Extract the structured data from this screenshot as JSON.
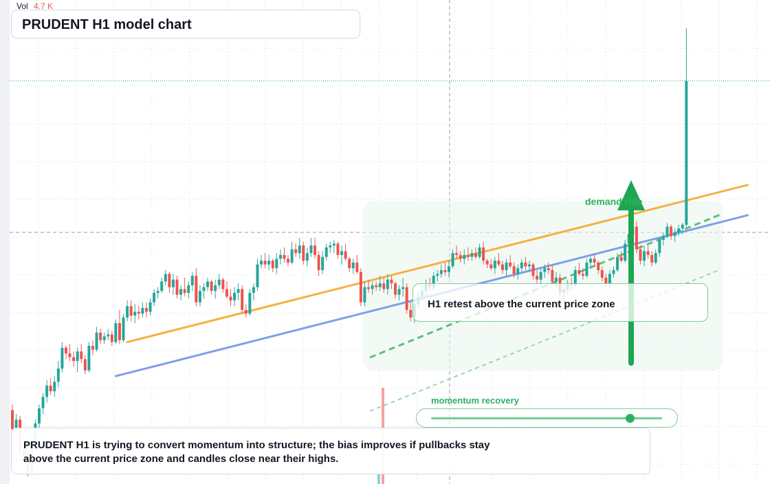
{
  "header": {
    "vol_label": "Vol",
    "vol_value": "4.7 K",
    "title": "PRUDENT H1 model chart"
  },
  "annotations": {
    "retest": "H1 retest above the current price zone",
    "demand": "demand ride",
    "momentum_label": "momentum recovery",
    "momentum_level": 0.86
  },
  "note": {
    "line1": "PRUDENT H1 is trying to convert momentum into structure; the bias improves if pullbacks stay",
    "line2": "above the current price zone and candles close near their highs."
  },
  "colors": {
    "up": "#26a69a",
    "down": "#ef5350",
    "orange_line": "#f5b041",
    "blue_line": "#7f9fe8",
    "green": "#2eb062"
  },
  "chart_data": {
    "type": "candlestick",
    "title": "PRUDENT H1 model chart",
    "timeframe": "H1",
    "axis_labels": "not shown",
    "candles": [
      [
        54.6,
        54.9,
        53.4,
        53.6
      ],
      [
        53.6,
        54.4,
        53.2,
        54.1
      ],
      [
        54.1,
        54.3,
        52.2,
        52.5
      ],
      [
        52.5,
        52.8,
        51.9,
        52.2
      ],
      [
        52.2,
        52.7,
        51.1,
        51.3
      ],
      [
        51.3,
        53.2,
        51.2,
        53.0
      ],
      [
        53.0,
        54.1,
        52.7,
        53.9
      ],
      [
        53.9,
        54.9,
        53.5,
        54.7
      ],
      [
        54.7,
        55.5,
        54.4,
        55.3
      ],
      [
        55.3,
        56.2,
        55.0,
        55.9
      ],
      [
        55.9,
        56.3,
        55.4,
        55.6
      ],
      [
        55.6,
        56.4,
        55.3,
        56.1
      ],
      [
        56.1,
        57.2,
        55.8,
        56.8
      ],
      [
        56.8,
        58.2,
        56.6,
        57.9
      ],
      [
        57.9,
        58.0,
        57.3,
        57.6
      ],
      [
        57.6,
        58.1,
        57.2,
        57.4
      ],
      [
        57.4,
        57.7,
        56.9,
        57.2
      ],
      [
        57.2,
        57.9,
        56.6,
        57.7
      ],
      [
        57.7,
        58.1,
        57.1,
        57.3
      ],
      [
        57.3,
        57.5,
        56.5,
        56.7
      ],
      [
        56.7,
        58.2,
        56.6,
        58.0
      ],
      [
        58.0,
        58.3,
        57.5,
        57.8
      ],
      [
        57.8,
        59.0,
        57.7,
        58.7
      ],
      [
        58.7,
        58.9,
        58.1,
        58.3
      ],
      [
        58.3,
        58.7,
        58.1,
        58.5
      ],
      [
        58.5,
        58.9,
        58.3,
        58.6
      ],
      [
        58.6,
        58.8,
        58.0,
        58.2
      ],
      [
        58.2,
        59.4,
        58.1,
        59.2
      ],
      [
        59.2,
        59.9,
        58.1,
        58.3
      ],
      [
        58.3,
        59.7,
        58.2,
        59.5
      ],
      [
        59.5,
        60.4,
        59.3,
        60.1
      ],
      [
        60.1,
        60.4,
        59.3,
        59.6
      ],
      [
        59.6,
        60.2,
        59.2,
        59.8
      ],
      [
        59.8,
        60.1,
        59.4,
        59.7
      ],
      [
        59.7,
        60.3,
        59.5,
        60.0
      ],
      [
        60.0,
        60.3,
        59.5,
        59.8
      ],
      [
        59.8,
        60.5,
        59.6,
        60.3
      ],
      [
        60.3,
        61.0,
        60.1,
        60.8
      ],
      [
        60.8,
        61.1,
        60.5,
        60.9
      ],
      [
        60.9,
        61.6,
        60.8,
        61.4
      ],
      [
        61.4,
        62.0,
        61.2,
        61.8
      ],
      [
        61.8,
        61.9,
        60.8,
        61.1
      ],
      [
        61.1,
        61.8,
        60.7,
        61.5
      ],
      [
        61.5,
        61.7,
        60.5,
        60.7
      ],
      [
        60.7,
        61.2,
        60.4,
        61.0
      ],
      [
        61.0,
        61.6,
        60.6,
        60.8
      ],
      [
        60.8,
        61.4,
        60.5,
        61.2
      ],
      [
        61.2,
        61.9,
        60.9,
        61.7
      ],
      [
        61.7,
        62.1,
        60.1,
        60.3
      ],
      [
        60.3,
        61.2,
        60.1,
        60.9
      ],
      [
        60.9,
        61.3,
        60.5,
        61.1
      ],
      [
        61.1,
        61.6,
        60.9,
        61.4
      ],
      [
        61.4,
        61.5,
        60.7,
        60.9
      ],
      [
        60.9,
        61.5,
        60.5,
        61.2
      ],
      [
        61.2,
        61.8,
        61.0,
        61.5
      ],
      [
        61.5,
        61.6,
        60.8,
        61.0
      ],
      [
        61.0,
        61.4,
        60.5,
        60.6
      ],
      [
        60.6,
        61.0,
        60.1,
        60.4
      ],
      [
        60.4,
        61.1,
        60.1,
        60.8
      ],
      [
        60.8,
        61.3,
        60.4,
        61.0
      ],
      [
        61.0,
        61.2,
        59.7,
        59.9
      ],
      [
        59.9,
        60.2,
        59.5,
        59.7
      ],
      [
        59.7,
        61.0,
        59.6,
        60.8
      ],
      [
        60.8,
        61.3,
        60.4,
        61.1
      ],
      [
        61.1,
        62.6,
        60.9,
        62.3
      ],
      [
        62.3,
        62.8,
        62.1,
        62.5
      ],
      [
        62.5,
        62.9,
        62.1,
        62.3
      ],
      [
        62.3,
        62.8,
        62.0,
        62.5
      ],
      [
        62.5,
        62.6,
        61.9,
        62.1
      ],
      [
        62.1,
        62.9,
        61.8,
        62.6
      ],
      [
        62.6,
        63.1,
        62.3,
        62.8
      ],
      [
        62.8,
        63.2,
        62.4,
        62.6
      ],
      [
        62.6,
        62.8,
        62.2,
        62.4
      ],
      [
        62.4,
        63.5,
        62.3,
        63.1
      ],
      [
        63.1,
        63.4,
        62.7,
        62.9
      ],
      [
        62.9,
        63.7,
        62.6,
        63.3
      ],
      [
        63.3,
        63.5,
        62.3,
        62.5
      ],
      [
        62.5,
        63.2,
        62.2,
        62.9
      ],
      [
        62.9,
        63.7,
        62.7,
        63.3
      ],
      [
        63.3,
        63.7,
        62.6,
        62.8
      ],
      [
        62.8,
        63.0,
        61.7,
        62.0
      ],
      [
        62.0,
        63.0,
        61.8,
        62.7
      ],
      [
        62.7,
        63.4,
        62.5,
        63.2
      ],
      [
        63.2,
        63.5,
        62.9,
        63.3
      ],
      [
        63.3,
        63.6,
        62.9,
        63.4
      ],
      [
        63.4,
        63.5,
        62.6,
        62.8
      ],
      [
        62.8,
        63.3,
        62.3,
        63.0
      ],
      [
        63.0,
        63.4,
        62.5,
        62.6
      ],
      [
        62.6,
        62.7,
        61.9,
        62.1
      ],
      [
        62.1,
        62.6,
        61.8,
        62.4
      ],
      [
        62.4,
        62.8,
        61.8,
        61.9
      ],
      [
        61.9,
        62.1,
        60.1,
        60.3
      ],
      [
        60.3,
        61.4,
        60.1,
        61.1
      ],
      [
        61.1,
        61.5,
        60.8,
        61.0
      ],
      [
        61.0,
        61.4,
        60.7,
        61.2
      ],
      [
        61.2,
        61.4,
        60.9,
        61.1
      ],
      [
        61.1,
        61.7,
        60.9,
        61.3
      ],
      [
        61.3,
        61.6,
        60.8,
        61.0
      ],
      [
        61.0,
        61.8,
        60.7,
        61.5
      ],
      [
        61.5,
        61.7,
        61.0,
        61.3
      ],
      [
        61.3,
        61.4,
        60.5,
        60.7
      ],
      [
        60.7,
        61.2,
        60.4,
        61.0
      ],
      [
        61.0,
        61.6,
        60.6,
        61.1
      ],
      [
        61.1,
        61.3,
        59.7,
        59.9
      ],
      [
        59.9,
        60.3,
        59.3,
        59.5
      ],
      [
        59.5,
        60.4,
        59.2,
        60.2
      ],
      [
        60.2,
        60.8,
        60.0,
        60.6
      ],
      [
        60.6,
        61.2,
        60.4,
        60.9
      ],
      [
        60.9,
        61.5,
        60.6,
        61.3
      ],
      [
        61.3,
        61.6,
        60.9,
        61.1
      ],
      [
        61.1,
        61.9,
        60.9,
        61.7
      ],
      [
        61.7,
        62.0,
        61.4,
        61.8
      ],
      [
        61.8,
        62.3,
        61.6,
        62.0
      ],
      [
        62.0,
        62.4,
        61.7,
        61.9
      ],
      [
        61.9,
        62.5,
        61.6,
        62.2
      ],
      [
        62.2,
        63.1,
        62.1,
        62.9
      ],
      [
        62.9,
        63.3,
        62.6,
        62.8
      ],
      [
        62.8,
        63.0,
        62.4,
        62.6
      ],
      [
        62.6,
        63.1,
        62.3,
        62.8
      ],
      [
        62.8,
        63.2,
        62.5,
        62.7
      ],
      [
        62.7,
        63.1,
        62.5,
        62.9
      ],
      [
        62.9,
        63.2,
        62.6,
        62.7
      ],
      [
        62.7,
        63.4,
        62.6,
        63.2
      ],
      [
        63.2,
        63.5,
        62.3,
        62.5
      ],
      [
        62.5,
        62.6,
        62.1,
        62.3
      ],
      [
        62.3,
        62.6,
        62.0,
        62.1
      ],
      [
        62.1,
        62.7,
        61.8,
        62.5
      ],
      [
        62.5,
        62.9,
        62.2,
        62.3
      ],
      [
        62.3,
        62.5,
        61.8,
        62.0
      ],
      [
        62.0,
        62.6,
        61.7,
        62.4
      ],
      [
        62.4,
        62.8,
        62.1,
        62.2
      ],
      [
        62.2,
        62.4,
        61.6,
        61.8
      ],
      [
        61.8,
        62.3,
        61.5,
        62.1
      ],
      [
        62.1,
        62.6,
        61.9,
        62.4
      ],
      [
        62.4,
        62.7,
        62.0,
        62.2
      ],
      [
        62.2,
        62.5,
        61.9,
        62.3
      ],
      [
        62.3,
        62.4,
        61.5,
        61.7
      ],
      [
        61.7,
        62.0,
        61.3,
        61.5
      ],
      [
        61.5,
        62.1,
        61.2,
        61.9
      ],
      [
        61.9,
        62.3,
        61.6,
        62.1
      ],
      [
        62.1,
        62.4,
        61.8,
        62.0
      ],
      [
        62.0,
        62.3,
        61.2,
        61.4
      ],
      [
        61.4,
        61.9,
        61.1,
        61.6
      ],
      [
        61.6,
        61.8,
        60.6,
        60.8
      ],
      [
        60.8,
        61.2,
        60.3,
        61.0
      ],
      [
        61.0,
        61.5,
        60.7,
        61.3
      ],
      [
        61.3,
        61.6,
        60.9,
        61.2
      ],
      [
        61.2,
        62.2,
        61.1,
        62.0
      ],
      [
        62.0,
        62.4,
        61.7,
        61.8
      ],
      [
        61.8,
        62.1,
        61.5,
        61.7
      ],
      [
        61.7,
        62.6,
        61.6,
        62.4
      ],
      [
        62.4,
        62.7,
        62.1,
        62.6
      ],
      [
        62.6,
        62.8,
        62.2,
        62.4
      ],
      [
        62.4,
        62.5,
        61.8,
        62.0
      ],
      [
        62.0,
        62.2,
        61.4,
        61.6
      ],
      [
        61.6,
        61.8,
        61.1,
        61.3
      ],
      [
        61.3,
        62.0,
        61.0,
        61.8
      ],
      [
        61.8,
        62.2,
        61.6,
        62.0
      ],
      [
        62.0,
        62.9,
        61.9,
        62.7
      ],
      [
        62.7,
        63.0,
        62.4,
        62.5
      ],
      [
        62.5,
        63.6,
        62.4,
        63.4
      ],
      [
        63.4,
        64.1,
        63.2,
        63.9
      ],
      [
        63.9,
        64.5,
        63.8,
        64.3
      ],
      [
        64.3,
        64.6,
        62.9,
        63.1
      ],
      [
        63.1,
        63.3,
        62.3,
        62.5
      ],
      [
        62.5,
        63.3,
        62.2,
        63.0
      ],
      [
        63.0,
        63.3,
        62.6,
        62.8
      ],
      [
        62.8,
        63.0,
        62.2,
        62.4
      ],
      [
        62.4,
        63.1,
        62.3,
        62.9
      ],
      [
        62.9,
        63.7,
        62.7,
        63.6
      ],
      [
        63.6,
        64.0,
        63.3,
        63.8
      ],
      [
        63.8,
        64.5,
        63.7,
        64.3
      ],
      [
        64.3,
        64.4,
        63.6,
        63.8
      ],
      [
        63.8,
        64.2,
        63.5,
        64.0
      ],
      [
        64.0,
        64.4,
        63.8,
        64.2
      ],
      [
        64.2,
        64.5,
        63.9,
        64.4
      ],
      [
        64.4,
        74.8,
        64.3,
        72.0
      ]
    ],
    "horizontal_levels": [
      72.0,
      64.0
    ],
    "trend_lines": [
      {
        "name": "orange",
        "from": [
          30,
          58.2
        ],
        "to": [
          192,
          66.5
        ]
      },
      {
        "name": "blue",
        "from": [
          27,
          56.4
        ],
        "to": [
          192,
          64.9
        ]
      }
    ]
  }
}
